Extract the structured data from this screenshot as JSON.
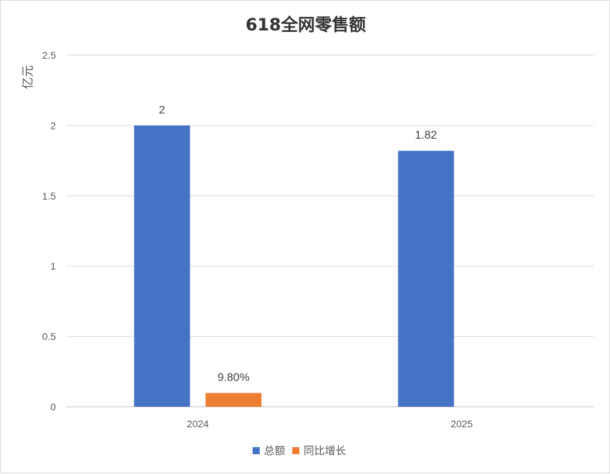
{
  "chart_data": {
    "type": "bar",
    "title": "618全网零售额",
    "ylabel": "亿元",
    "xlabel": "",
    "categories": [
      "2024",
      "2025"
    ],
    "ylim": [
      0,
      2.5
    ],
    "yticks": [
      0,
      0.5,
      1,
      1.5,
      2,
      2.5
    ],
    "ytick_labels": [
      "0",
      "0.5",
      "1",
      "1.5",
      "2",
      "2.5"
    ],
    "grid": true,
    "legend_position": "bottom",
    "series": [
      {
        "name": "总额",
        "color": "#4472c4",
        "values": [
          2,
          1.82
        ],
        "data_labels": [
          "2",
          "1.82"
        ]
      },
      {
        "name": "同比增长",
        "color": "#ed7d31",
        "values": [
          0.098,
          null
        ],
        "data_labels": [
          "9.80%",
          ""
        ]
      }
    ]
  }
}
